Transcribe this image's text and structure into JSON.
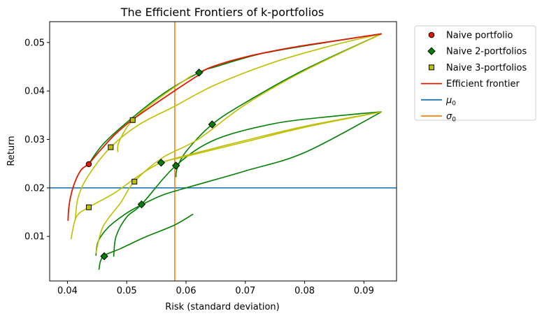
{
  "chart_data": {
    "type": "line",
    "title": "The Efficient Frontiers of k-portfolios",
    "xlabel": "Risk (standard deviation)",
    "ylabel": "Return",
    "xlim": [
      0.037,
      0.0955
    ],
    "ylim": [
      0.0008,
      0.0543
    ],
    "x_ticks": [
      0.04,
      0.05,
      0.06,
      0.07,
      0.08,
      0.09
    ],
    "x_tick_labels": [
      "0.04",
      "0.05",
      "0.06",
      "0.07",
      "0.08",
      "0.09"
    ],
    "y_ticks": [
      0.01,
      0.02,
      0.03,
      0.04,
      0.05
    ],
    "y_tick_labels": [
      "0.01",
      "0.02",
      "0.03",
      "0.04",
      "0.05"
    ],
    "grid": false,
    "legend_position": "outside right",
    "colors": {
      "efficient_frontier": "#e01a00",
      "k2_frontier": "#008000",
      "k3_frontier": "#bfbf00",
      "mu0": "#1f77b4",
      "sigma0": "#ff7f0e",
      "naive_portfolio_marker": "#e01a00",
      "naive2_marker": "#008000",
      "naive3_marker": "#bfbf00"
    },
    "legend": [
      {
        "label": "Naive portfolio",
        "symbol": "circle",
        "color": "#e01a00"
      },
      {
        "label": "Naive 2-portfolios",
        "symbol": "diamond",
        "color": "#008000"
      },
      {
        "label": "Naive 3-portfolios",
        "symbol": "square",
        "color": "#bfbf00"
      },
      {
        "label": "Efficient frontier",
        "symbol": "line",
        "color": "#e01a00"
      },
      {
        "label": "μ",
        "label_sub": "0",
        "symbol": "line",
        "color": "#1f77b4"
      },
      {
        "label": "σ",
        "label_sub": "0",
        "symbol": "line",
        "color": "#ff7f0e"
      }
    ],
    "mu0": 0.02,
    "sigma0": 0.0581,
    "efficient_frontier": [
      [
        0.0401,
        0.0132
      ],
      [
        0.0402,
        0.0155
      ],
      [
        0.0405,
        0.018
      ],
      [
        0.0412,
        0.021
      ],
      [
        0.0423,
        0.0237
      ],
      [
        0.0436,
        0.025
      ],
      [
        0.0455,
        0.0277
      ],
      [
        0.048,
        0.031
      ],
      [
        0.051,
        0.0341
      ],
      [
        0.055,
        0.0375
      ],
      [
        0.059,
        0.0408
      ],
      [
        0.062,
        0.0432
      ],
      [
        0.064,
        0.0448
      ],
      [
        0.07,
        0.047
      ],
      [
        0.078,
        0.049
      ],
      [
        0.086,
        0.0505
      ],
      [
        0.093,
        0.0518
      ]
    ],
    "k2_frontiers": [
      [
        [
          0.0436,
          0.025
        ],
        [
          0.046,
          0.029
        ],
        [
          0.05,
          0.0335
        ],
        [
          0.056,
          0.0393
        ],
        [
          0.0622,
          0.0438
        ],
        [
          0.065,
          0.045
        ],
        [
          0.072,
          0.0475
        ],
        [
          0.08,
          0.0493
        ],
        [
          0.093,
          0.0518
        ]
      ],
      [
        [
          0.0583,
          0.0222
        ],
        [
          0.0585,
          0.024
        ],
        [
          0.06,
          0.0275
        ],
        [
          0.0644,
          0.0331
        ],
        [
          0.07,
          0.0376
        ],
        [
          0.08,
          0.0444
        ],
        [
          0.093,
          0.0518
        ]
      ],
      [
        [
          0.0478,
          0.0058
        ],
        [
          0.0482,
          0.01
        ],
        [
          0.05,
          0.014
        ],
        [
          0.0525,
          0.0166
        ],
        [
          0.0583,
          0.0246
        ],
        [
          0.065,
          0.03
        ],
        [
          0.075,
          0.0333
        ],
        [
          0.085,
          0.0348
        ],
        [
          0.093,
          0.0357
        ]
      ],
      [
        [
          0.0448,
          0.006
        ],
        [
          0.0452,
          0.009
        ],
        [
          0.047,
          0.012
        ],
        [
          0.05,
          0.0148
        ],
        [
          0.0525,
          0.0165
        ],
        [
          0.056,
          0.0185
        ],
        [
          0.06,
          0.02
        ],
        [
          0.07,
          0.0235
        ],
        [
          0.08,
          0.0273
        ],
        [
          0.093,
          0.0357
        ]
      ],
      [
        [
          0.0453,
          0.0031
        ],
        [
          0.046,
          0.0058
        ],
        [
          0.049,
          0.0075
        ],
        [
          0.053,
          0.0098
        ],
        [
          0.058,
          0.0123
        ],
        [
          0.0612,
          0.0146
        ]
      ]
    ],
    "k3_frontiers": [
      [
        [
          0.0485,
          0.0274
        ],
        [
          0.0487,
          0.0295
        ],
        [
          0.051,
          0.034
        ],
        [
          0.056,
          0.039
        ],
        [
          0.061,
          0.0432
        ]
      ],
      [
        [
          0.0413,
          0.0132
        ],
        [
          0.0418,
          0.018
        ],
        [
          0.0435,
          0.0225
        ],
        [
          0.0473,
          0.0284
        ],
        [
          0.052,
          0.033
        ],
        [
          0.058,
          0.0368
        ],
        [
          0.065,
          0.0413
        ],
        [
          0.075,
          0.046
        ],
        [
          0.085,
          0.0495
        ],
        [
          0.093,
          0.0518
        ]
      ],
      [
        [
          0.0448,
          0.0065
        ],
        [
          0.046,
          0.012
        ],
        [
          0.049,
          0.017
        ],
        [
          0.0513,
          0.0213
        ],
        [
          0.056,
          0.0262
        ],
        [
          0.062,
          0.03
        ],
        [
          0.07,
          0.0372
        ],
        [
          0.08,
          0.0442
        ],
        [
          0.093,
          0.0518
        ]
      ],
      [
        [
          0.0406,
          0.0094
        ],
        [
          0.0415,
          0.014
        ],
        [
          0.0436,
          0.016
        ],
        [
          0.048,
          0.019
        ],
        [
          0.052,
          0.0225
        ],
        [
          0.0558,
          0.0252
        ],
        [
          0.06,
          0.0265
        ],
        [
          0.07,
          0.0295
        ],
        [
          0.08,
          0.0325
        ],
        [
          0.093,
          0.0357
        ]
      ],
      [
        [
          0.0556,
          0.0252
        ],
        [
          0.06,
          0.0267
        ],
        [
          0.07,
          0.0298
        ],
        [
          0.08,
          0.0327
        ],
        [
          0.093,
          0.0357
        ]
      ]
    ],
    "naive_portfolio": [
      [
        0.0436,
        0.0249
      ]
    ],
    "naive_2_portfolios": [
      [
        0.0622,
        0.0438
      ],
      [
        0.0644,
        0.0331
      ],
      [
        0.0558,
        0.0252
      ],
      [
        0.0583,
        0.0246
      ],
      [
        0.0525,
        0.0166
      ],
      [
        0.0462,
        0.0059
      ]
    ],
    "naive_3_portfolios": [
      [
        0.051,
        0.034
      ],
      [
        0.0473,
        0.0284
      ],
      [
        0.0513,
        0.0213
      ],
      [
        0.0436,
        0.016
      ]
    ]
  }
}
